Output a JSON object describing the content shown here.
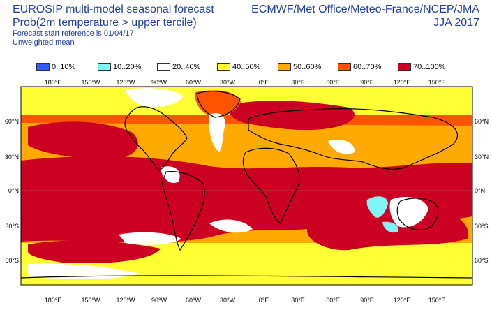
{
  "header": {
    "title": "EUROSIP multi-model seasonal forecast",
    "subtitle": "Prob(2m temperature > upper tercile)",
    "reference": "Forecast start reference is 01/04/17",
    "weighting": "Unweighted mean",
    "centres": "ECMWF/Met Office/Meteo-France/NCEP/JMA",
    "season": "JJA 2017"
  },
  "legend": [
    {
      "label": "0..10%",
      "color": "#2f5bff"
    },
    {
      "label": "10..20%",
      "color": "#7ff5f5"
    },
    {
      "label": "20..40%",
      "color": "#ffffff"
    },
    {
      "label": "40..50%",
      "color": "#ffff33"
    },
    {
      "label": "50..60%",
      "color": "#ffaa00"
    },
    {
      "label": "60..70%",
      "color": "#ff5500"
    },
    {
      "label": "70..100%",
      "color": "#cc0022"
    }
  ],
  "map": {
    "top_lon_labels": [
      "180°E",
      "150°W",
      "120°W",
      "90°W",
      "60°W",
      "30°W",
      "0°E",
      "30°E",
      "60°E",
      "90°E",
      "120°E",
      "150°E"
    ],
    "bottom_lon_labels": [
      "180°E",
      "150°W",
      "120°W",
      "90°W",
      "60°W",
      "30°W",
      "0°E",
      "30°E",
      "60°E",
      "90°E",
      "120°E",
      "150°E"
    ],
    "left_lat_labels": [
      "60°N",
      "30°N",
      "0°N",
      "30°S",
      "60°S"
    ],
    "right_lat_labels": [
      "60°N",
      "30°N",
      "0°N",
      "30°S",
      "60°S"
    ]
  }
}
